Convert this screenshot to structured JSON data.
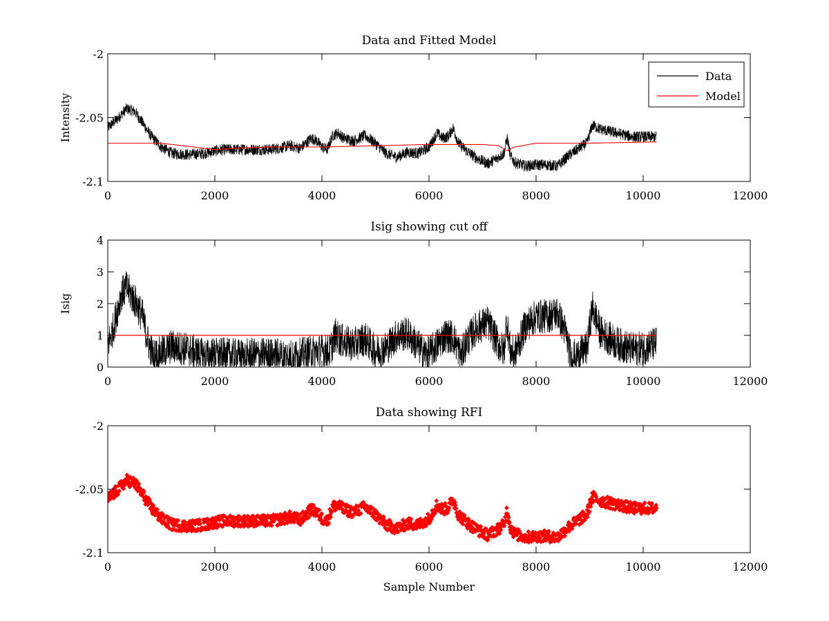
{
  "chart_data": [
    {
      "type": "line",
      "title": "Data and Fitted Model",
      "xlabel": "",
      "ylabel": "Intensity",
      "xlim": [
        0,
        12000
      ],
      "ylim": [
        -2.1,
        -2.0
      ],
      "xticks": [
        "0",
        "2000",
        "4000",
        "6000",
        "8000",
        "10000",
        "12000"
      ],
      "yticks": [
        "-2",
        "-2.05",
        "-2.1"
      ],
      "grid": false,
      "legend": "top-right",
      "noise_amplitude": 0.0045,
      "series": [
        {
          "name": "Data",
          "color": "#000000",
          "style": "line",
          "x": [
            0,
            200,
            350,
            500,
            650,
            800,
            1000,
            1200,
            1500,
            1800,
            2000,
            2200,
            2500,
            2800,
            3000,
            3200,
            3400,
            3600,
            3800,
            3900,
            4000,
            4100,
            4200,
            4300,
            4400,
            4600,
            4800,
            5000,
            5200,
            5400,
            5600,
            5800,
            6000,
            6150,
            6250,
            6350,
            6450,
            6550,
            6700,
            6900,
            7100,
            7300,
            7400,
            7460,
            7520,
            7600,
            7800,
            8000,
            8200,
            8400,
            8600,
            8800,
            8950,
            9050,
            9200,
            9500,
            9800,
            10000,
            10250
          ],
          "y": [
            -2.058,
            -2.05,
            -2.043,
            -2.045,
            -2.054,
            -2.064,
            -2.073,
            -2.078,
            -2.079,
            -2.078,
            -2.076,
            -2.075,
            -2.075,
            -2.075,
            -2.075,
            -2.074,
            -2.072,
            -2.074,
            -2.066,
            -2.068,
            -2.073,
            -2.075,
            -2.064,
            -2.062,
            -2.066,
            -2.068,
            -2.064,
            -2.07,
            -2.078,
            -2.081,
            -2.077,
            -2.078,
            -2.073,
            -2.062,
            -2.066,
            -2.065,
            -2.058,
            -2.07,
            -2.076,
            -2.082,
            -2.086,
            -2.081,
            -2.078,
            -2.066,
            -2.08,
            -2.085,
            -2.088,
            -2.087,
            -2.087,
            -2.088,
            -2.08,
            -2.074,
            -2.07,
            -2.056,
            -2.059,
            -2.062,
            -2.065,
            -2.065,
            -2.065
          ]
        },
        {
          "name": "Model",
          "color": "#ff0000",
          "style": "line",
          "x": [
            0,
            1000,
            1600,
            2000,
            2400,
            3000,
            4000,
            5000,
            6000,
            7000,
            7300,
            7450,
            7600,
            8000,
            9000,
            10250
          ],
          "y": [
            -2.07,
            -2.07,
            -2.073,
            -2.075,
            -2.074,
            -2.073,
            -2.073,
            -2.072,
            -2.071,
            -2.071,
            -2.072,
            -2.076,
            -2.073,
            -2.07,
            -2.07,
            -2.069
          ]
        }
      ]
    },
    {
      "type": "line",
      "title": "Isig showing cut off",
      "xlabel": "",
      "ylabel": "Isig",
      "xlim": [
        0,
        12000
      ],
      "ylim": [
        0,
        4
      ],
      "xticks": [
        "0",
        "2000",
        "4000",
        "6000",
        "8000",
        "10000",
        "12000"
      ],
      "yticks": [
        "0",
        "1",
        "2",
        "3",
        "4"
      ],
      "grid": false,
      "noise_amplitude": 0.55,
      "series": [
        {
          "color": "#000000",
          "style": "line",
          "x": [
            0,
            100,
            250,
            350,
            500,
            650,
            750,
            850,
            1000,
            1200,
            1500,
            1800,
            2000,
            2500,
            3000,
            3500,
            3900,
            4000,
            4150,
            4250,
            4400,
            4600,
            4800,
            5000,
            5200,
            5400,
            5600,
            5800,
            5950,
            6100,
            6300,
            6450,
            6600,
            6700,
            6900,
            7100,
            7300,
            7400,
            7450,
            7520,
            7600,
            7800,
            8000,
            8200,
            8400,
            8550,
            8650,
            8800,
            8950,
            9050,
            9200,
            9500,
            9800,
            10000,
            10250
          ],
          "y": [
            0.7,
            1.2,
            2.3,
            2.5,
            2.1,
            1.6,
            0.8,
            0.35,
            0.45,
            0.65,
            0.55,
            0.35,
            0.4,
            0.35,
            0.4,
            0.35,
            0.5,
            0.5,
            0.5,
            1.0,
            0.8,
            0.7,
            0.9,
            0.5,
            0.6,
            1.0,
            1.05,
            0.65,
            0.4,
            0.6,
            1.0,
            0.95,
            0.35,
            0.8,
            1.25,
            1.4,
            0.7,
            0.5,
            1.5,
            0.5,
            0.4,
            1.3,
            1.6,
            1.6,
            1.7,
            1.1,
            0.3,
            0.4,
            0.6,
            1.9,
            1.1,
            0.75,
            0.55,
            0.6,
            0.75
          ]
        },
        {
          "color": "#ff0000",
          "style": "line",
          "x": [
            0,
            10250
          ],
          "y": [
            1,
            1
          ]
        }
      ]
    },
    {
      "type": "scatter",
      "title": "Data showing RFI",
      "xlabel": "Sample Number",
      "ylabel": "",
      "xlim": [
        0,
        12000
      ],
      "ylim": [
        -2.1,
        -2.0
      ],
      "xticks": [
        "0",
        "2000",
        "4000",
        "6000",
        "8000",
        "10000",
        "12000"
      ],
      "yticks": [
        "-2",
        "-2.05",
        "-2.1"
      ],
      "grid": false,
      "noise_amplitude": 0.0045,
      "series": [
        {
          "color": "#ff0000",
          "style": "markers",
          "x": [
            0,
            200,
            350,
            500,
            650,
            800,
            1000,
            1200,
            1500,
            1800,
            2000,
            2200,
            2500,
            2800,
            3000,
            3200,
            3400,
            3600,
            3800,
            3900,
            4000,
            4100,
            4200,
            4300,
            4400,
            4600,
            4800,
            5000,
            5200,
            5400,
            5600,
            5800,
            6000,
            6150,
            6250,
            6350,
            6450,
            6550,
            6700,
            6900,
            7100,
            7300,
            7400,
            7460,
            7520,
            7600,
            7800,
            8000,
            8200,
            8400,
            8600,
            8800,
            8950,
            9050,
            9200,
            9500,
            9800,
            10000,
            10250
          ],
          "y": [
            -2.058,
            -2.05,
            -2.043,
            -2.045,
            -2.054,
            -2.064,
            -2.073,
            -2.078,
            -2.079,
            -2.078,
            -2.076,
            -2.075,
            -2.075,
            -2.075,
            -2.075,
            -2.074,
            -2.072,
            -2.074,
            -2.066,
            -2.068,
            -2.073,
            -2.075,
            -2.064,
            -2.062,
            -2.066,
            -2.068,
            -2.064,
            -2.07,
            -2.078,
            -2.081,
            -2.077,
            -2.078,
            -2.073,
            -2.062,
            -2.066,
            -2.065,
            -2.058,
            -2.07,
            -2.076,
            -2.082,
            -2.086,
            -2.081,
            -2.078,
            -2.066,
            -2.08,
            -2.085,
            -2.088,
            -2.087,
            -2.087,
            -2.088,
            -2.08,
            -2.074,
            -2.07,
            -2.056,
            -2.059,
            -2.062,
            -2.065,
            -2.065,
            -2.065
          ]
        }
      ]
    }
  ]
}
